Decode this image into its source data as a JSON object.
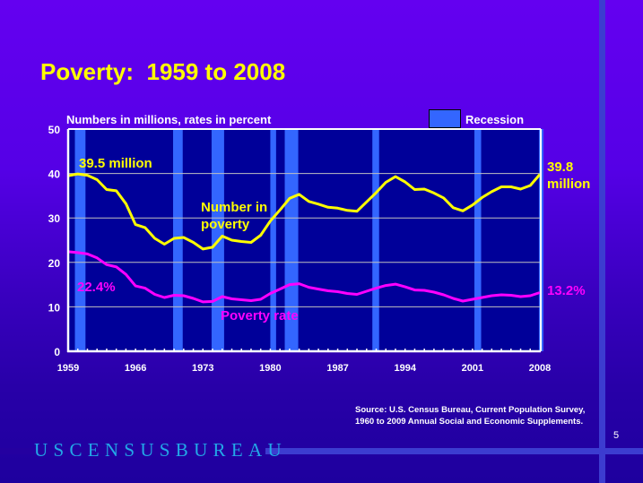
{
  "slide": {
    "title": "Poverty:  1959 to 2008",
    "page_number": "5",
    "logo_text": "USCENSUSBUREAU",
    "source_line1": "Source:  U.S. Census Bureau, Current Population Survey,",
    "source_line2": "1960 to 2009 Annual Social and Economic Supplements."
  },
  "colors": {
    "plot_bg": "#000099",
    "recession": "#3366ff",
    "number_line": "#ffff00",
    "rate_line": "#ff00ff",
    "gridline": "#c0c0c0",
    "axis": "#ffffff"
  },
  "chart_data": {
    "type": "line",
    "title": "Poverty:  1959 to 2008",
    "subtitle": "Numbers in millions, rates in percent",
    "xlabel": "",
    "ylabel": "",
    "xlim": [
      1959,
      2008
    ],
    "ylim": [
      0,
      50
    ],
    "grid": true,
    "y_ticks": [
      0,
      10,
      20,
      30,
      40,
      50
    ],
    "x_tick_labels": [
      "1959",
      "1966",
      "1973",
      "1980",
      "1987",
      "1994",
      "2001",
      "2008"
    ],
    "x_tick_values": [
      1959,
      1966,
      1973,
      1980,
      1987,
      1994,
      2001,
      2008
    ],
    "legend": {
      "label": "Recession",
      "position": "top-right"
    },
    "recessions": [
      {
        "start": 1959.7,
        "end": 1960.8
      },
      {
        "start": 1969.9,
        "end": 1970.9
      },
      {
        "start": 1973.9,
        "end": 1975.2
      },
      {
        "start": 1980.0,
        "end": 1980.6
      },
      {
        "start": 1981.5,
        "end": 1982.9
      },
      {
        "start": 1990.6,
        "end": 1991.3
      },
      {
        "start": 2001.2,
        "end": 2001.9
      },
      {
        "start": 2007.9,
        "end": 2008.0
      }
    ],
    "x": [
      1959,
      1960,
      1961,
      1962,
      1963,
      1964,
      1965,
      1966,
      1967,
      1968,
      1969,
      1970,
      1971,
      1972,
      1973,
      1974,
      1975,
      1976,
      1977,
      1978,
      1979,
      1980,
      1981,
      1982,
      1983,
      1984,
      1985,
      1986,
      1987,
      1988,
      1989,
      1990,
      1991,
      1992,
      1993,
      1994,
      1995,
      1996,
      1997,
      1998,
      1999,
      2000,
      2001,
      2002,
      2003,
      2004,
      2005,
      2006,
      2007,
      2008
    ],
    "series": [
      {
        "name": "Number in poverty",
        "units": "millions",
        "values": [
          39.5,
          39.9,
          39.6,
          38.6,
          36.4,
          36.1,
          33.2,
          28.5,
          27.8,
          25.4,
          24.1,
          25.4,
          25.6,
          24.5,
          23.0,
          23.4,
          25.9,
          25.0,
          24.7,
          24.5,
          26.1,
          29.3,
          31.8,
          34.4,
          35.3,
          33.7,
          33.1,
          32.4,
          32.2,
          31.7,
          31.5,
          33.6,
          35.7,
          38.0,
          39.3,
          38.1,
          36.4,
          36.5,
          35.6,
          34.5,
          32.3,
          31.6,
          32.9,
          34.6,
          35.9,
          37.0,
          37.0,
          36.5,
          37.3,
          39.8
        ]
      },
      {
        "name": "Poverty rate",
        "units": "percent",
        "values": [
          22.4,
          22.2,
          21.9,
          21.0,
          19.5,
          19.0,
          17.3,
          14.7,
          14.2,
          12.8,
          12.1,
          12.6,
          12.5,
          11.9,
          11.1,
          11.2,
          12.3,
          11.8,
          11.6,
          11.4,
          11.7,
          13.0,
          14.0,
          15.0,
          15.2,
          14.4,
          14.0,
          13.6,
          13.4,
          13.0,
          12.8,
          13.5,
          14.2,
          14.8,
          15.1,
          14.5,
          13.8,
          13.7,
          13.3,
          12.7,
          11.9,
          11.3,
          11.7,
          12.1,
          12.5,
          12.7,
          12.6,
          12.3,
          12.5,
          13.2
        ]
      }
    ],
    "annotations": {
      "number_start": "39.5 million",
      "number_end_line1": "39.8",
      "number_end_line2": "million",
      "number_label_line1": "Number in",
      "number_label_line2": "poverty",
      "rate_start": "22.4%",
      "rate_end": "13.2%",
      "rate_label": "Poverty rate"
    }
  }
}
